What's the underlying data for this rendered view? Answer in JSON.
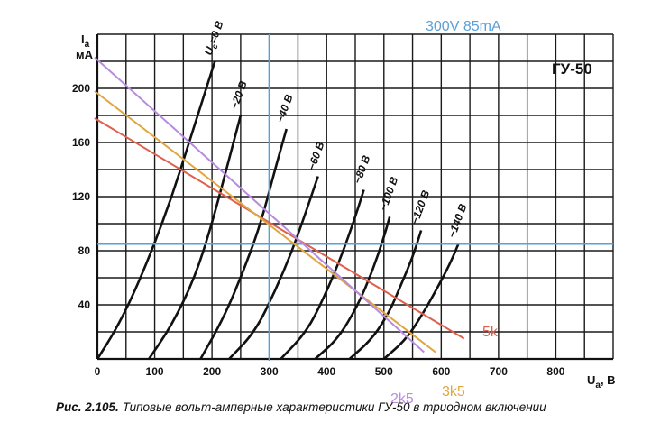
{
  "chart_data": {
    "type": "line",
    "device": "ГУ-50",
    "xlabel": "U",
    "xlabel_sub": "а",
    "xunit": ", В",
    "ylabel": "I",
    "ylabel_sub": "a",
    "yunit": "мА",
    "xlim": [
      0,
      900
    ],
    "ylim": [
      0,
      240
    ],
    "x_ticks": [
      "0",
      "100",
      "200",
      "300",
      "400",
      "500",
      "600",
      "700",
      "800"
    ],
    "y_ticks": [
      "40",
      "80",
      "120",
      "160",
      "200"
    ],
    "grid": true,
    "grid_step_x": 50,
    "grid_step_y": 20,
    "curves": [
      {
        "label": "U",
        "label_sub": "c",
        "label_rest": "=0 В",
        "points": [
          [
            0,
            0
          ],
          [
            30,
            20
          ],
          [
            60,
            45
          ],
          [
            95,
            80
          ],
          [
            130,
            120
          ],
          [
            160,
            160
          ],
          [
            190,
            200
          ],
          [
            205,
            220
          ]
        ]
      },
      {
        "label": "−20 В",
        "points": [
          [
            90,
            0
          ],
          [
            130,
            25
          ],
          [
            170,
            60
          ],
          [
            200,
            100
          ],
          [
            225,
            140
          ],
          [
            250,
            180
          ]
        ]
      },
      {
        "label": "−40 В",
        "points": [
          [
            180,
            0
          ],
          [
            220,
            30
          ],
          [
            255,
            65
          ],
          [
            285,
            100
          ],
          [
            310,
            140
          ],
          [
            330,
            170
          ]
        ]
      },
      {
        "label": "−60 В",
        "points": [
          [
            230,
            0
          ],
          [
            275,
            20
          ],
          [
            310,
            50
          ],
          [
            340,
            80
          ],
          [
            365,
            110
          ],
          [
            385,
            135
          ]
        ]
      },
      {
        "label": "−80 В",
        "points": [
          [
            320,
            0
          ],
          [
            365,
            20
          ],
          [
            395,
            45
          ],
          [
            425,
            75
          ],
          [
            450,
            105
          ],
          [
            465,
            125
          ]
        ]
      },
      {
        "label": "−100 В",
        "points": [
          [
            380,
            0
          ],
          [
            420,
            15
          ],
          [
            455,
            40
          ],
          [
            480,
            65
          ],
          [
            500,
            90
          ],
          [
            510,
            105
          ]
        ]
      },
      {
        "label": "−120 В",
        "points": [
          [
            440,
            0
          ],
          [
            480,
            15
          ],
          [
            510,
            35
          ],
          [
            530,
            55
          ],
          [
            550,
            75
          ],
          [
            565,
            95
          ]
        ]
      },
      {
        "label": "−140 В",
        "points": [
          [
            500,
            0
          ],
          [
            540,
            15
          ],
          [
            570,
            35
          ],
          [
            590,
            50
          ],
          [
            615,
            70
          ],
          [
            630,
            85
          ]
        ]
      }
    ],
    "operating_point": {
      "voltage": 300,
      "current": 85,
      "label": "300V 85mA",
      "color": "#5aa0d8"
    },
    "load_lines": [
      {
        "name": "5k",
        "color": "#e0604e",
        "points": [
          [
            -5,
            178
          ],
          [
            640,
            15
          ]
        ]
      },
      {
        "name": "3k5",
        "color": "#e0a640",
        "points": [
          [
            -5,
            198
          ],
          [
            590,
            5
          ]
        ]
      },
      {
        "name": "2k5",
        "color": "#b98be0",
        "points": [
          [
            -5,
            223
          ],
          [
            570,
            5
          ]
        ]
      }
    ]
  },
  "caption": {
    "figure_ref": "Рис. 2.105.",
    "text": "Типовые вольт-амперные характеристики ГУ-50 в триодном включении"
  }
}
